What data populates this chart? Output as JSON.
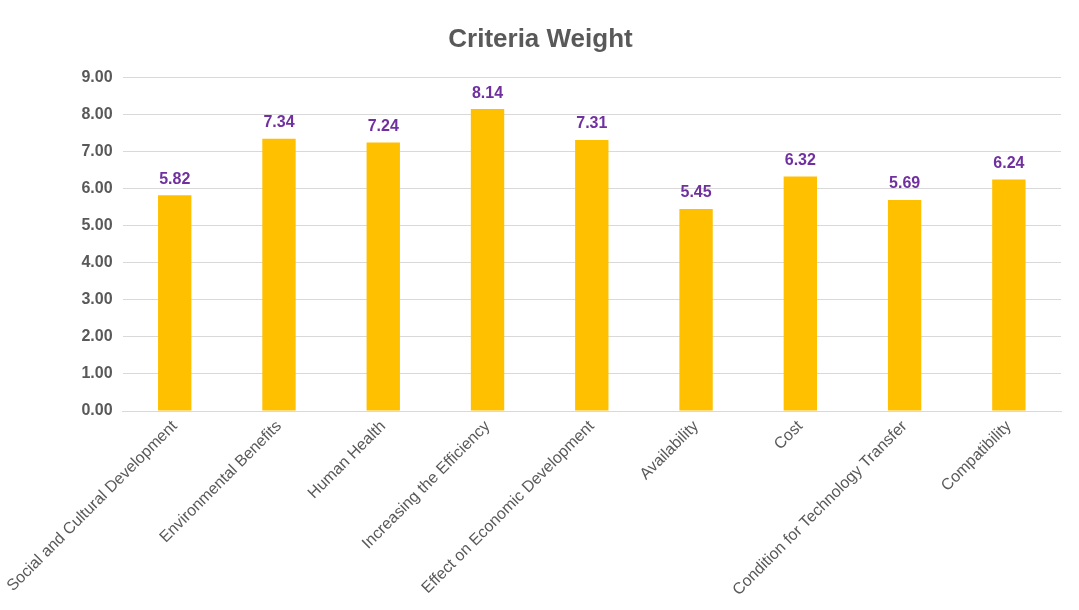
{
  "chart_data": {
    "type": "bar",
    "title": "Criteria Weight",
    "categories": [
      "Social and Cultural Development",
      "Environmental Benefits",
      "Human Health",
      "Increasing the Efficiency",
      "Effect on Economic Development",
      "Availability",
      "Cost",
      "Condition for Technology Transfer",
      "Compatibility"
    ],
    "values": [
      5.82,
      7.34,
      7.24,
      8.14,
      7.31,
      5.45,
      6.32,
      5.69,
      6.24
    ],
    "color": "#ffc000",
    "ylim": [
      0,
      9
    ],
    "yticks": [
      {
        "value": 0,
        "label": "0.00"
      },
      {
        "value": 1,
        "label": "1.00"
      },
      {
        "value": 2,
        "label": "2.00"
      },
      {
        "value": 3,
        "label": "3.00"
      },
      {
        "value": 4,
        "label": "4.00"
      },
      {
        "value": 5,
        "label": "5.00"
      },
      {
        "value": 6,
        "label": "6.00"
      },
      {
        "value": 7,
        "label": "7.00"
      },
      {
        "value": 8,
        "label": "8.00"
      },
      {
        "value": 9,
        "label": "9.00"
      }
    ],
    "grid": "y",
    "data_labels": true
  }
}
